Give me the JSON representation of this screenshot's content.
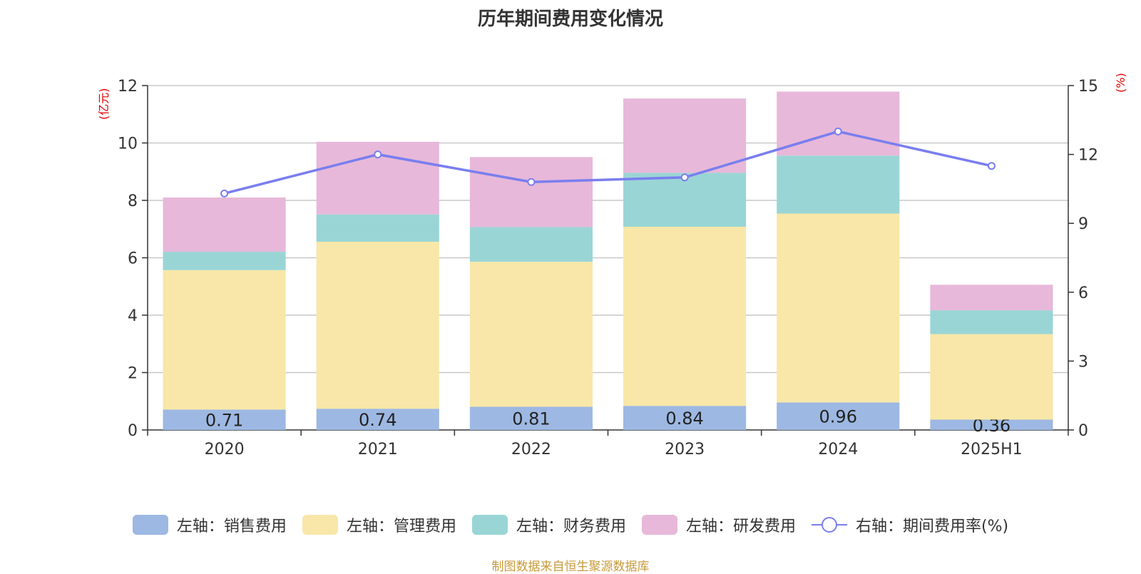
{
  "title": "历年期间费用变化情况",
  "left_unit": "(亿元)",
  "right_unit": "(%)",
  "source": "制图数据来自恒生聚源数据库",
  "colors": {
    "sales": "#9db8e2",
    "admin": "#f8e7a8",
    "finance": "#9ad5d5",
    "rnd": "#e7b8d9",
    "rate": "#7a7eef",
    "axis_text": "#333333",
    "grid": "#c8c8c8",
    "unit": "#e60000"
  },
  "legend": [
    {
      "label": "左轴：销售费用",
      "color_key": "sales",
      "kind": "bar"
    },
    {
      "label": "左轴：管理费用",
      "color_key": "admin",
      "kind": "bar"
    },
    {
      "label": "左轴：财务费用",
      "color_key": "finance",
      "kind": "bar"
    },
    {
      "label": "左轴：研发费用",
      "color_key": "rnd",
      "kind": "bar"
    },
    {
      "label": "右轴：期间费用率(%)",
      "color_key": "rate",
      "kind": "line"
    }
  ],
  "chart_data": {
    "type": "bar",
    "stacked": true,
    "categories": [
      "2020",
      "2021",
      "2022",
      "2023",
      "2024",
      "2025H1"
    ],
    "series": [
      {
        "name": "左轴：销售费用",
        "axis": "left",
        "values": [
          0.71,
          0.74,
          0.81,
          0.84,
          0.96,
          0.36
        ],
        "labels": [
          "0.71",
          "0.74",
          "0.81",
          "0.84",
          "0.96",
          "0.36"
        ]
      },
      {
        "name": "左轴：管理费用",
        "axis": "left",
        "values": [
          4.86,
          5.82,
          5.05,
          6.24,
          6.58,
          2.98
        ]
      },
      {
        "name": "左轴：财务费用",
        "axis": "left",
        "values": [
          0.64,
          0.95,
          1.21,
          1.88,
          2.02,
          0.83
        ]
      },
      {
        "name": "左轴：研发费用",
        "axis": "left",
        "values": [
          1.89,
          2.53,
          2.44,
          2.59,
          2.23,
          0.89
        ]
      },
      {
        "name": "右轴：期间费用率(%)",
        "axis": "right",
        "type": "line",
        "values": [
          10.3,
          12.0,
          10.8,
          11.0,
          13.0,
          11.5
        ]
      }
    ],
    "left_axis": {
      "min": 0,
      "max": 12,
      "ticks": [
        "0",
        "2",
        "4",
        "6",
        "8",
        "10",
        "12"
      ]
    },
    "right_axis": {
      "min": 0,
      "max": 15,
      "ticks": [
        "0",
        "3",
        "6",
        "9",
        "12",
        "15"
      ]
    },
    "grid": true,
    "legend_position": "bottom"
  }
}
